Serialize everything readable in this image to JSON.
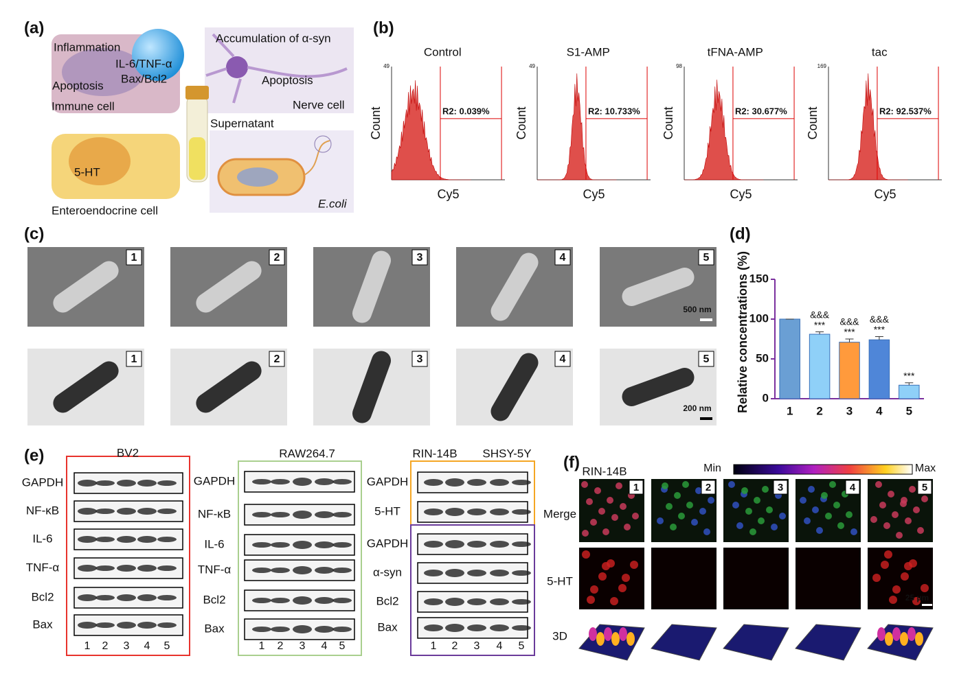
{
  "panel_labels": [
    "(a)",
    "(b)",
    "(c)",
    "(d)",
    "(e)",
    "(f)"
  ],
  "panel_a": {
    "labels": [
      "Inflammation",
      "IL-6/TNF-α",
      "Bax/Bcl2",
      "Apoptosis",
      "Immune cell",
      "Accumulation of α-syn",
      "Apoptosis",
      "Nerve cell",
      "Supernatant",
      "5-HT",
      "Enteroendocrine cell",
      "E.coli"
    ]
  },
  "panel_b": {
    "x_label": "Cy5",
    "y_label": "Count",
    "plots": [
      {
        "title": "Control",
        "gate": "R2: 0.039%",
        "ymax": 49
      },
      {
        "title": "S1-AMP",
        "gate": "R2: 10.733%",
        "ymax": 49
      },
      {
        "title": "tFNA-AMP",
        "gate": "R2: 30.677%",
        "ymax": 98
      },
      {
        "title": "tac",
        "gate": "R2: 92.537%",
        "ymax": 169
      }
    ]
  },
  "panel_c": {
    "numbers": [
      "1",
      "2",
      "3",
      "4",
      "5"
    ],
    "scale_bars": [
      "500 nm",
      "200 nm"
    ]
  },
  "chart_data": {
    "type": "bar",
    "y_label": "Relative concentrations (%)",
    "categories": [
      "1",
      "2",
      "3",
      "4",
      "5"
    ],
    "values": [
      100,
      81,
      71,
      74,
      17
    ],
    "errors": [
      0,
      3,
      4,
      4,
      3
    ],
    "colors": [
      "#6a9fd4",
      "#8fd0f8",
      "#ff9a3c",
      "#4f86d8",
      "#8fd0f8"
    ],
    "annotations_top": [
      null,
      "&&&",
      "&&&",
      "&&&",
      null
    ],
    "annotations": [
      null,
      "***",
      "***",
      "***",
      "***"
    ],
    "ylim": [
      0,
      150
    ],
    "yticks": [
      0,
      50,
      100,
      150
    ],
    "axis_color": "#7a2f9e"
  },
  "panel_e": {
    "lanes": [
      "1",
      "2",
      "3",
      "4",
      "5"
    ],
    "groups": [
      {
        "titles": [
          {
            "text": "BV2",
            "color": "#e8322c"
          }
        ],
        "rows": [
          "GAPDH",
          "NF-κB",
          "IL-6",
          "TNF-α",
          "Bcl2",
          "Bax"
        ]
      },
      {
        "titles": [
          {
            "text": "RAW264.7",
            "color": "#6fae47"
          }
        ],
        "rows": [
          "GAPDH",
          "NF-κB",
          "IL-6",
          "TNF-α",
          "Bcl2",
          "Bax"
        ]
      },
      {
        "titles": [
          {
            "text": "RIN-14B",
            "color": "#f5a623"
          },
          {
            "text": "SHSY-5Y",
            "color": "#cf9ae6"
          }
        ],
        "rows": [
          "GAPDH",
          "5-HT",
          "GAPDH",
          "α-syn",
          "Bcl2",
          "Bax"
        ]
      }
    ]
  },
  "panel_f": {
    "cell_line": "RIN-14B",
    "colorbar": [
      "Min",
      "Max"
    ],
    "rows": [
      "Merge",
      "5-HT",
      "3D"
    ],
    "numbers": [
      "1",
      "2",
      "3",
      "4",
      "5"
    ],
    "scale_bar": "25 µm"
  }
}
